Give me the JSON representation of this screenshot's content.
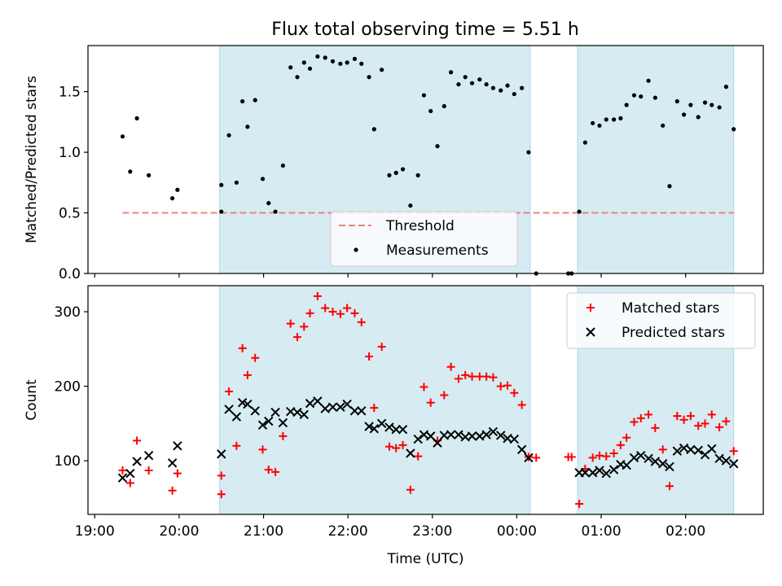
{
  "title": "Flux total observing time = 5.51 h",
  "chart_data": [
    {
      "panel": "top",
      "type": "scatter",
      "ylabel": "Matched/Predicted stars",
      "xlim": [
        18.92,
        26.92
      ],
      "ylim": [
        0,
        1.88
      ],
      "yticks": [
        0.0,
        0.5,
        1.0,
        1.5
      ],
      "ytick_labels": [
        "0.0",
        "0.5",
        "1.0",
        "1.5"
      ],
      "shaded_intervals": [
        [
          20.48,
          24.16
        ],
        [
          24.72,
          26.57
        ]
      ],
      "threshold": {
        "name": "Threshold",
        "y": 0.5,
        "x_range": [
          19.33,
          26.57
        ],
        "color": "#f08080"
      },
      "legend_position": "lower-center",
      "series": [
        {
          "name": "Measurements",
          "color": "#000000",
          "marker": "dot",
          "points": [
            [
              19.33,
              1.13
            ],
            [
              19.42,
              0.84
            ],
            [
              19.5,
              1.28
            ],
            [
              19.64,
              0.81
            ],
            [
              19.92,
              0.62
            ],
            [
              19.98,
              0.69
            ],
            [
              20.5,
              0.73
            ],
            [
              20.5,
              0.51
            ],
            [
              20.59,
              1.14
            ],
            [
              20.68,
              0.75
            ],
            [
              20.75,
              1.42
            ],
            [
              20.81,
              1.21
            ],
            [
              20.9,
              1.43
            ],
            [
              20.99,
              0.78
            ],
            [
              21.06,
              0.58
            ],
            [
              21.14,
              0.51
            ],
            [
              21.23,
              0.89
            ],
            [
              21.32,
              1.7
            ],
            [
              21.4,
              1.62
            ],
            [
              21.48,
              1.74
            ],
            [
              21.55,
              1.69
            ],
            [
              21.64,
              1.79
            ],
            [
              21.73,
              1.78
            ],
            [
              21.82,
              1.75
            ],
            [
              21.91,
              1.73
            ],
            [
              21.99,
              1.74
            ],
            [
              22.08,
              1.77
            ],
            [
              22.16,
              1.73
            ],
            [
              22.25,
              1.62
            ],
            [
              22.31,
              1.19
            ],
            [
              22.4,
              1.68
            ],
            [
              22.49,
              0.81
            ],
            [
              22.57,
              0.83
            ],
            [
              22.65,
              0.86
            ],
            [
              22.74,
              0.56
            ],
            [
              22.83,
              0.81
            ],
            [
              22.9,
              1.47
            ],
            [
              22.98,
              1.34
            ],
            [
              23.06,
              1.05
            ],
            [
              23.14,
              1.38
            ],
            [
              23.22,
              1.66
            ],
            [
              23.31,
              1.56
            ],
            [
              23.39,
              1.62
            ],
            [
              23.47,
              1.57
            ],
            [
              23.56,
              1.6
            ],
            [
              23.64,
              1.56
            ],
            [
              23.72,
              1.53
            ],
            [
              23.81,
              1.51
            ],
            [
              23.89,
              1.55
            ],
            [
              23.97,
              1.48
            ],
            [
              24.06,
              1.53
            ],
            [
              24.14,
              1.0
            ],
            [
              24.23,
              0.0
            ],
            [
              24.61,
              0.0
            ],
            [
              24.65,
              0.0
            ],
            [
              24.74,
              0.51
            ],
            [
              24.81,
              1.08
            ],
            [
              24.9,
              1.24
            ],
            [
              24.98,
              1.22
            ],
            [
              25.06,
              1.27
            ],
            [
              25.15,
              1.27
            ],
            [
              25.23,
              1.28
            ],
            [
              25.3,
              1.39
            ],
            [
              25.39,
              1.47
            ],
            [
              25.47,
              1.46
            ],
            [
              25.56,
              1.59
            ],
            [
              25.64,
              1.45
            ],
            [
              25.73,
              1.22
            ],
            [
              25.81,
              0.72
            ],
            [
              25.9,
              1.42
            ],
            [
              25.98,
              1.31
            ],
            [
              26.06,
              1.39
            ],
            [
              26.15,
              1.29
            ],
            [
              26.23,
              1.41
            ],
            [
              26.31,
              1.39
            ],
            [
              26.4,
              1.37
            ],
            [
              26.48,
              1.54
            ],
            [
              26.57,
              1.19
            ]
          ]
        }
      ]
    },
    {
      "panel": "bottom",
      "type": "scatter",
      "xlabel": "Time (UTC)",
      "ylabel": "Count",
      "xlim": [
        18.92,
        26.92
      ],
      "ylim": [
        28,
        335
      ],
      "yticks": [
        100,
        200,
        300
      ],
      "ytick_labels": [
        "100",
        "200",
        "300"
      ],
      "xticks": [
        19,
        20,
        21,
        22,
        23,
        24,
        25,
        26
      ],
      "xtick_labels": [
        "19:00",
        "20:00",
        "21:00",
        "22:00",
        "23:00",
        "00:00",
        "01:00",
        "02:00"
      ],
      "shaded_intervals": [
        [
          20.48,
          24.16
        ],
        [
          24.72,
          26.57
        ]
      ],
      "legend_position": "top-right",
      "series": [
        {
          "name": "Matched stars",
          "color": "#ff0000",
          "marker": "plus",
          "points": [
            [
              19.33,
              87
            ],
            [
              19.42,
              70
            ],
            [
              19.5,
              127
            ],
            [
              19.64,
              87
            ],
            [
              19.92,
              60
            ],
            [
              19.98,
              83
            ],
            [
              20.5,
              80
            ],
            [
              20.5,
              55
            ],
            [
              20.59,
              193
            ],
            [
              20.68,
              120
            ],
            [
              20.75,
              251
            ],
            [
              20.81,
              215
            ],
            [
              20.9,
              238
            ],
            [
              20.99,
              115
            ],
            [
              21.06,
              88
            ],
            [
              21.14,
              85
            ],
            [
              21.23,
              133
            ],
            [
              21.32,
              284
            ],
            [
              21.4,
              266
            ],
            [
              21.48,
              280
            ],
            [
              21.55,
              298
            ],
            [
              21.64,
              321
            ],
            [
              21.73,
              305
            ],
            [
              21.82,
              300
            ],
            [
              21.91,
              297
            ],
            [
              21.99,
              305
            ],
            [
              22.08,
              298
            ],
            [
              22.16,
              286
            ],
            [
              22.25,
              240
            ],
            [
              22.31,
              171
            ],
            [
              22.4,
              253
            ],
            [
              22.49,
              119
            ],
            [
              22.57,
              117
            ],
            [
              22.65,
              121
            ],
            [
              22.74,
              61
            ],
            [
              22.83,
              106
            ],
            [
              22.9,
              199
            ],
            [
              22.98,
              178
            ],
            [
              23.06,
              127
            ],
            [
              23.14,
              188
            ],
            [
              23.22,
              226
            ],
            [
              23.31,
              210
            ],
            [
              23.39,
              215
            ],
            [
              23.47,
              213
            ],
            [
              23.56,
              213
            ],
            [
              23.64,
              213
            ],
            [
              23.72,
              212
            ],
            [
              23.81,
              200
            ],
            [
              23.89,
              201
            ],
            [
              23.97,
              191
            ],
            [
              24.06,
              175
            ],
            [
              24.14,
              105
            ],
            [
              24.23,
              104
            ],
            [
              24.61,
              105
            ],
            [
              24.65,
              105
            ],
            [
              24.74,
              42
            ],
            [
              24.81,
              89
            ],
            [
              24.9,
              104
            ],
            [
              24.98,
              107
            ],
            [
              25.06,
              106
            ],
            [
              25.15,
              110
            ],
            [
              25.23,
              121
            ],
            [
              25.3,
              131
            ],
            [
              25.39,
              152
            ],
            [
              25.47,
              157
            ],
            [
              25.56,
              162
            ],
            [
              25.64,
              144
            ],
            [
              25.73,
              115
            ],
            [
              25.81,
              66
            ],
            [
              25.9,
              160
            ],
            [
              25.98,
              155
            ],
            [
              26.06,
              160
            ],
            [
              26.15,
              147
            ],
            [
              26.23,
              150
            ],
            [
              26.31,
              162
            ],
            [
              26.4,
              145
            ],
            [
              26.48,
              153
            ],
            [
              26.57,
              113
            ]
          ]
        },
        {
          "name": "Predicted stars",
          "color": "#000000",
          "marker": "x",
          "points": [
            [
              19.33,
              77
            ],
            [
              19.42,
              83
            ],
            [
              19.5,
              99
            ],
            [
              19.64,
              107
            ],
            [
              19.92,
              97
            ],
            [
              19.98,
              120
            ],
            [
              20.5,
              109
            ],
            [
              20.59,
              169
            ],
            [
              20.68,
              159
            ],
            [
              20.75,
              178
            ],
            [
              20.81,
              176
            ],
            [
              20.9,
              167
            ],
            [
              20.99,
              148
            ],
            [
              21.06,
              153
            ],
            [
              21.14,
              165
            ],
            [
              21.23,
              151
            ],
            [
              21.32,
              166
            ],
            [
              21.4,
              165
            ],
            [
              21.48,
              162
            ],
            [
              21.55,
              177
            ],
            [
              21.64,
              180
            ],
            [
              21.73,
              170
            ],
            [
              21.82,
              172
            ],
            [
              21.91,
              172
            ],
            [
              21.99,
              176
            ],
            [
              22.08,
              167
            ],
            [
              22.16,
              167
            ],
            [
              22.25,
              146
            ],
            [
              22.31,
              143
            ],
            [
              22.4,
              150
            ],
            [
              22.49,
              145
            ],
            [
              22.57,
              142
            ],
            [
              22.65,
              142
            ],
            [
              22.74,
              110
            ],
            [
              22.83,
              129
            ],
            [
              22.9,
              135
            ],
            [
              22.98,
              133
            ],
            [
              23.06,
              124
            ],
            [
              23.14,
              134
            ],
            [
              23.22,
              135
            ],
            [
              23.31,
              135
            ],
            [
              23.39,
              132
            ],
            [
              23.47,
              133
            ],
            [
              23.56,
              133
            ],
            [
              23.64,
              135
            ],
            [
              23.72,
              139
            ],
            [
              23.81,
              134
            ],
            [
              23.89,
              130
            ],
            [
              23.97,
              129
            ],
            [
              24.06,
              115
            ],
            [
              24.14,
              104
            ],
            [
              24.74,
              84
            ],
            [
              24.81,
              84
            ],
            [
              24.9,
              84
            ],
            [
              24.98,
              87
            ],
            [
              25.06,
              83
            ],
            [
              25.15,
              88
            ],
            [
              25.23,
              95
            ],
            [
              25.3,
              94
            ],
            [
              25.39,
              104
            ],
            [
              25.47,
              107
            ],
            [
              25.56,
              103
            ],
            [
              25.64,
              99
            ],
            [
              25.73,
              96
            ],
            [
              25.81,
              92
            ],
            [
              25.9,
              113
            ],
            [
              25.98,
              117
            ],
            [
              26.06,
              115
            ],
            [
              26.15,
              114
            ],
            [
              26.23,
              108
            ],
            [
              26.31,
              116
            ],
            [
              26.4,
              103
            ],
            [
              26.48,
              100
            ],
            [
              26.57,
              96
            ]
          ]
        }
      ]
    }
  ]
}
